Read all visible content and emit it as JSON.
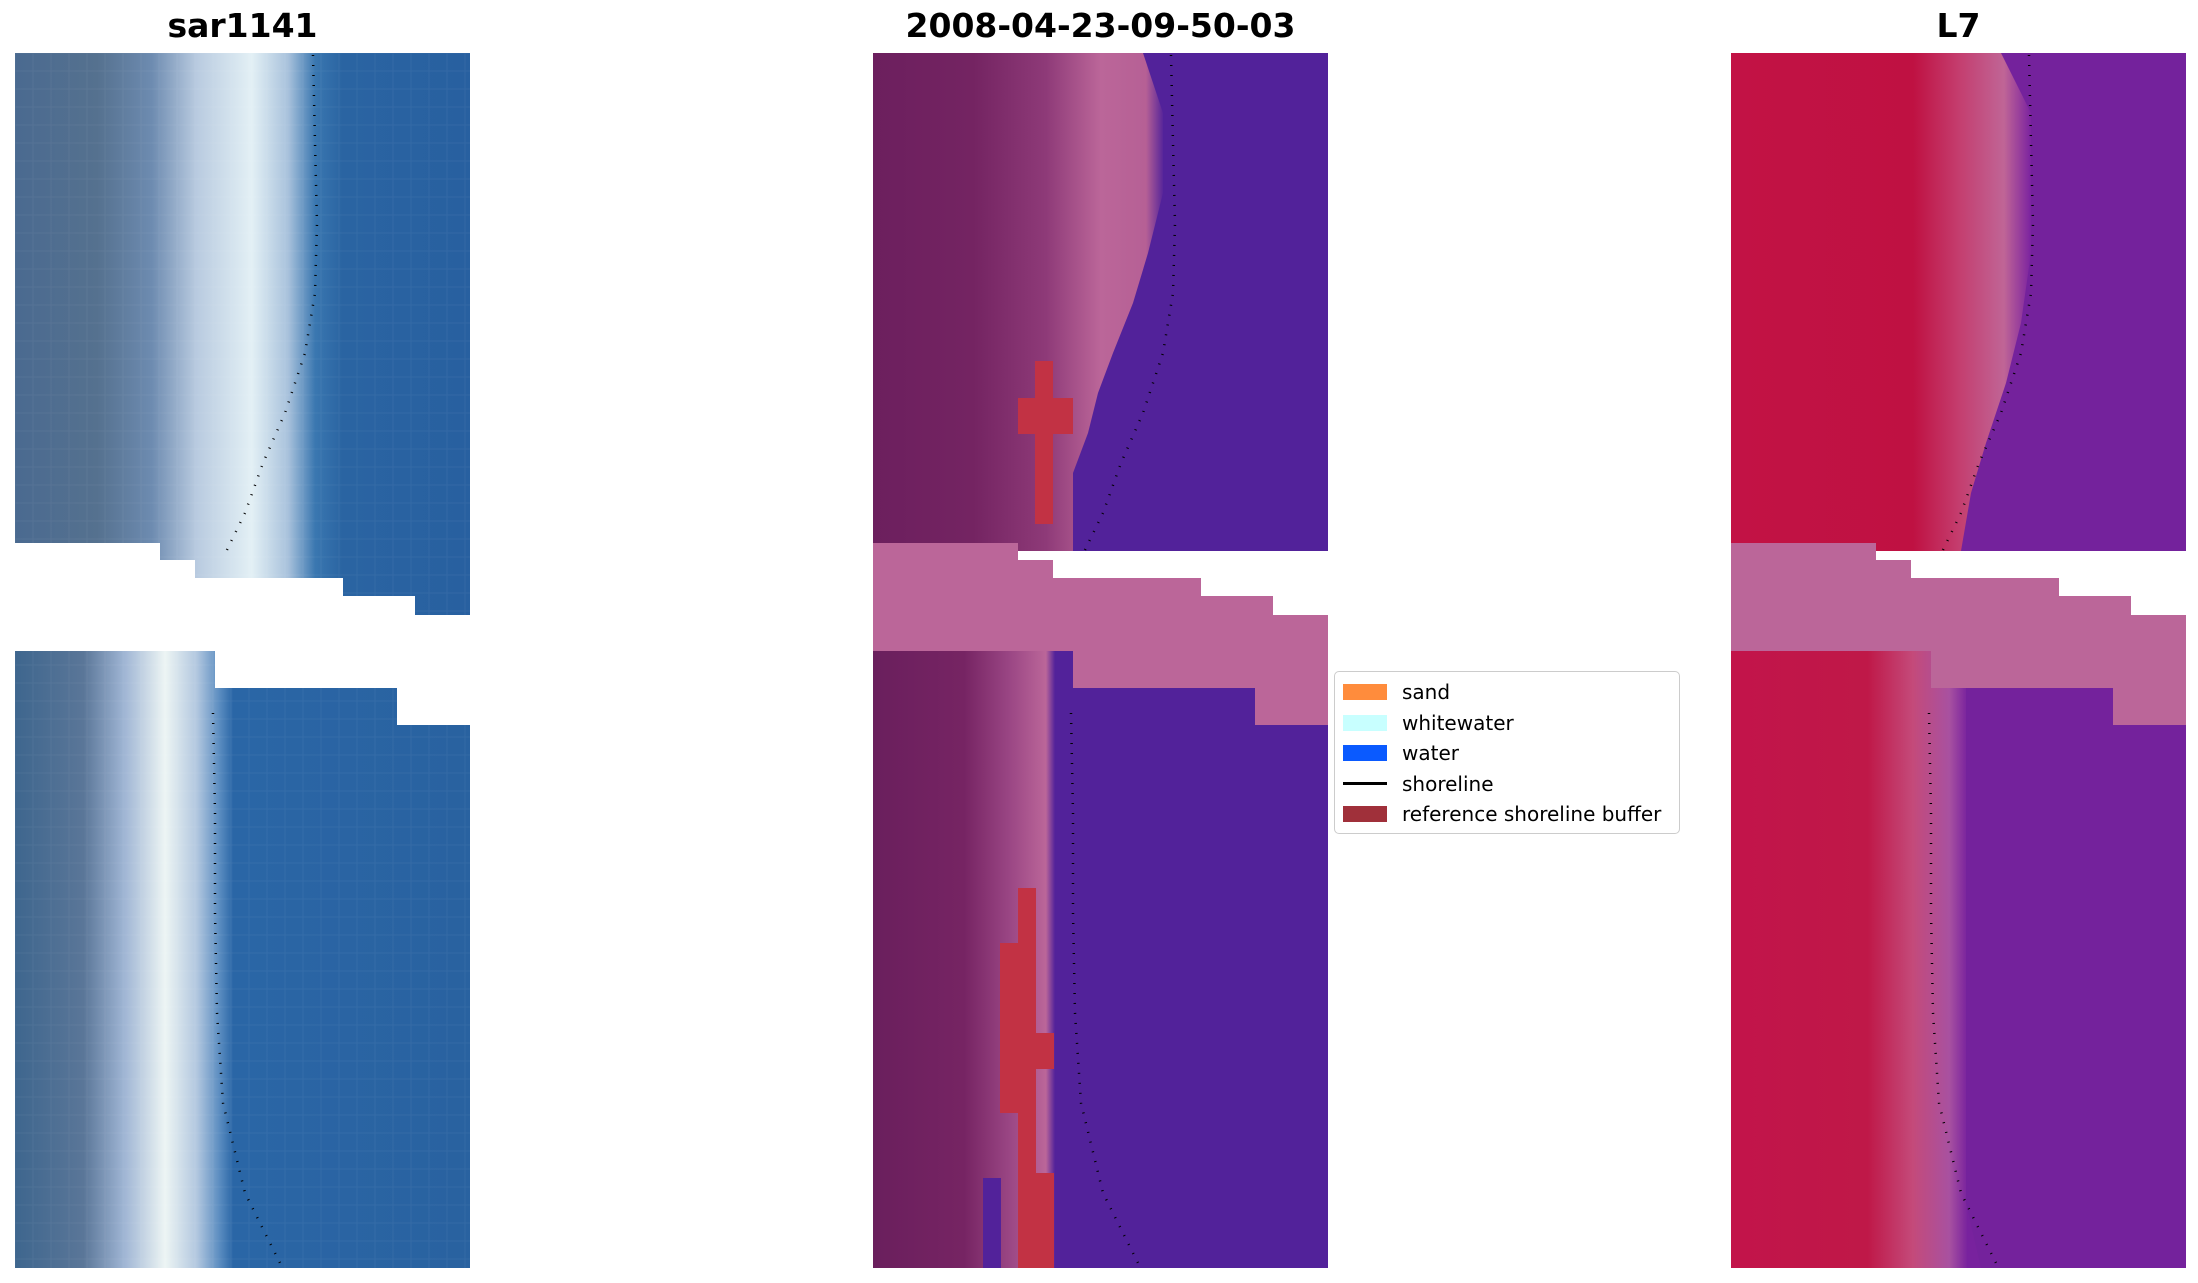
{
  "panels": [
    {
      "title": "sar1141",
      "content": "RGB satellite composite with detected shoreline"
    },
    {
      "title": "2008-04-23-09-50-03",
      "content": "classified image (sand, whitewater, water) with reference shoreline buffer"
    },
    {
      "title": "L7",
      "content": "MNDWI water index with shoreline"
    }
  ],
  "legend": {
    "items": [
      {
        "label": "sand",
        "color": "#ff8c3c",
        "kind": "patch"
      },
      {
        "label": "whitewater",
        "color": "#c8ffff",
        "kind": "patch"
      },
      {
        "label": "water",
        "color": "#0a5aff",
        "kind": "patch"
      },
      {
        "label": "shoreline",
        "color": "#000000",
        "kind": "line"
      },
      {
        "label": "reference shoreline buffer",
        "color": "#a0303a",
        "kind": "patch"
      }
    ]
  },
  "colors": {
    "rgb_water": "#2a64a2",
    "rgb_beach": "#e8f4f6",
    "rgb_land": "#4e6e92",
    "class_water": "#52229a",
    "class_land": "#722260",
    "class_pink": "#bb6699",
    "class_buffer": "#c23244",
    "index_red": "#bf1040",
    "index_purple": "#7622a0",
    "gap": "#bb6699"
  }
}
